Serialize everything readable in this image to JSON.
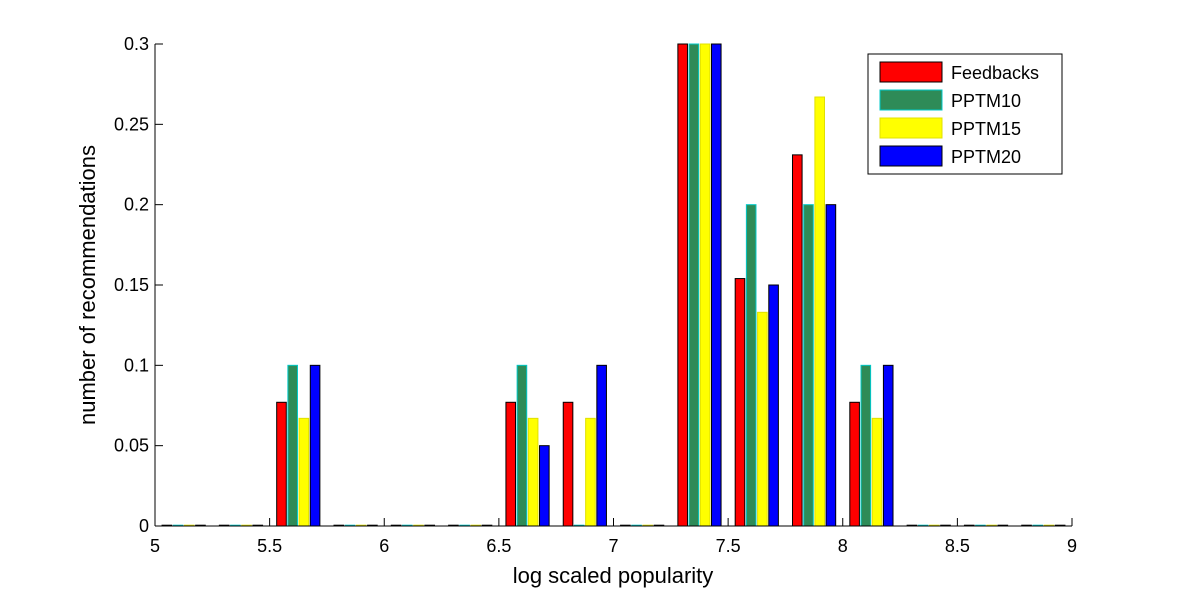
{
  "chart_data": {
    "type": "bar",
    "xlabel": "log scaled popularity",
    "ylabel": "number of recommendations",
    "xlim": [
      5,
      9
    ],
    "ylim": [
      0,
      0.3
    ],
    "xticks": [
      "5",
      "5.5",
      "6",
      "6.5",
      "7",
      "7.5",
      "8",
      "8.5",
      "9"
    ],
    "yticks": [
      "0",
      "0.05",
      "0.1",
      "0.15",
      "0.2",
      "0.25",
      "0.3"
    ],
    "bin_centers": [
      5.125,
      5.375,
      5.625,
      5.875,
      6.125,
      6.375,
      6.625,
      6.875,
      7.125,
      7.375,
      7.625,
      7.875,
      8.125,
      8.375,
      8.625,
      8.875
    ],
    "grid": false,
    "legend_position": "top-right",
    "series": [
      {
        "name": "Feedbacks",
        "color": "#ff0000",
        "edge": "#000000",
        "values": [
          0,
          0,
          0.077,
          0,
          0,
          0,
          0.077,
          0.077,
          0,
          0.3,
          0.154,
          0.231,
          0.077,
          0,
          0,
          0
        ]
      },
      {
        "name": "PPTM10",
        "color": "#2e8b57",
        "edge": "#00c8c8",
        "values": [
          0,
          0,
          0.1,
          0,
          0,
          0,
          0.1,
          0,
          0,
          0.3,
          0.2,
          0.2,
          0.1,
          0,
          0,
          0
        ]
      },
      {
        "name": "PPTM15",
        "color": "#ffff00",
        "edge": "#e0e000",
        "values": [
          0,
          0,
          0.067,
          0,
          0,
          0,
          0.067,
          0.067,
          0,
          0.3,
          0.133,
          0.267,
          0.067,
          0,
          0,
          0
        ]
      },
      {
        "name": "PPTM20",
        "color": "#0000ff",
        "edge": "#000000",
        "values": [
          0,
          0,
          0.1,
          0,
          0,
          0,
          0.05,
          0.1,
          0,
          0.3,
          0.15,
          0.2,
          0.1,
          0,
          0,
          0
        ]
      }
    ]
  }
}
